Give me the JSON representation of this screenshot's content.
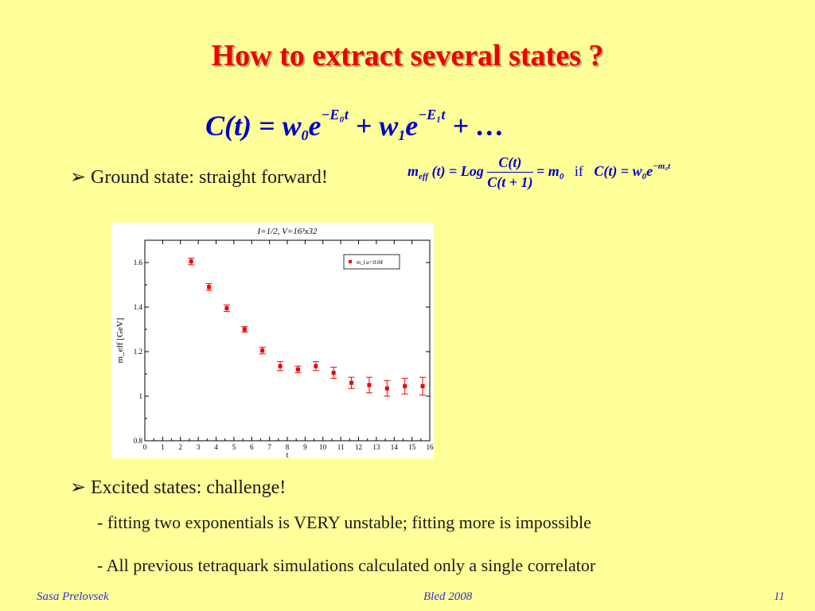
{
  "slide": {
    "title": "How to extract several states ?",
    "main_equation": {
      "lhs": "C(t)",
      "eq": "=",
      "w0": "w",
      "w0_sub": "0",
      "e1": "e",
      "e1_sup": "−E₀t",
      "plus1": "+",
      "w1": "w",
      "w1_sub": "1",
      "e2": "e",
      "e2_sup": "−E₁t",
      "plus2": "+",
      "dots": "…"
    },
    "bullet1": "Ground state: straight forward!",
    "meff_equation": {
      "lhs": "m",
      "lhs_sub": "eff",
      "lhs_arg": "(t) = Log",
      "num": "C(t)",
      "den": "C(t + 1)",
      "rhs": "= m",
      "rhs_sub": "0",
      "cond": "if",
      "cond_lhs": "C(t) = w",
      "cond_w_sub": "0",
      "cond_e": "e",
      "cond_sup": "−m₀t"
    },
    "bullet2": "Excited states: challenge!",
    "line1": "- fitting  two exponentials is VERY unstable; fitting more is impossible",
    "line2": "- All previous tetraquark simulations calculated only a single correlator",
    "footer_left": "Sasa Prelovsek",
    "footer_center": "Bled 2008",
    "footer_right": "11"
  },
  "colors": {
    "background": "#ffff99",
    "title": "#ee0000",
    "equation": "#0000cc",
    "footer": "#3333cc",
    "marker": "#ee0000"
  },
  "bullet_icon": "arrowhead-bullet-icon",
  "chart_data": {
    "type": "scatter",
    "title": "I=1/2, V=16³x32",
    "xlabel": "t",
    "ylabel": "m_eff [GeV]",
    "xlim": [
      0,
      16
    ],
    "ylim": [
      0.8,
      1.7
    ],
    "xticks": [
      0,
      1,
      2,
      3,
      4,
      5,
      6,
      7,
      8,
      9,
      10,
      11,
      12,
      13,
      14,
      15,
      16
    ],
    "yticks": [
      0.8,
      1,
      1.2,
      1.4,
      1.6
    ],
    "ytick_labels": [
      "0.8",
      "1",
      "1.2",
      "1.4",
      "1.6"
    ],
    "legend": "top-right",
    "grid": false,
    "series": [
      {
        "name": "m_l a=0.04",
        "color": "#ee0000",
        "x": [
          2.6,
          3.6,
          4.6,
          5.6,
          6.6,
          7.6,
          8.6,
          9.6,
          10.6,
          11.6,
          12.6,
          13.6,
          14.6,
          15.6
        ],
        "y": [
          1.605,
          1.49,
          1.395,
          1.3,
          1.205,
          1.135,
          1.12,
          1.135,
          1.105,
          1.06,
          1.05,
          1.035,
          1.045,
          1.045
        ],
        "err": [
          0.015,
          0.015,
          0.015,
          0.012,
          0.015,
          0.02,
          0.015,
          0.02,
          0.025,
          0.025,
          0.035,
          0.035,
          0.035,
          0.04
        ]
      }
    ]
  }
}
